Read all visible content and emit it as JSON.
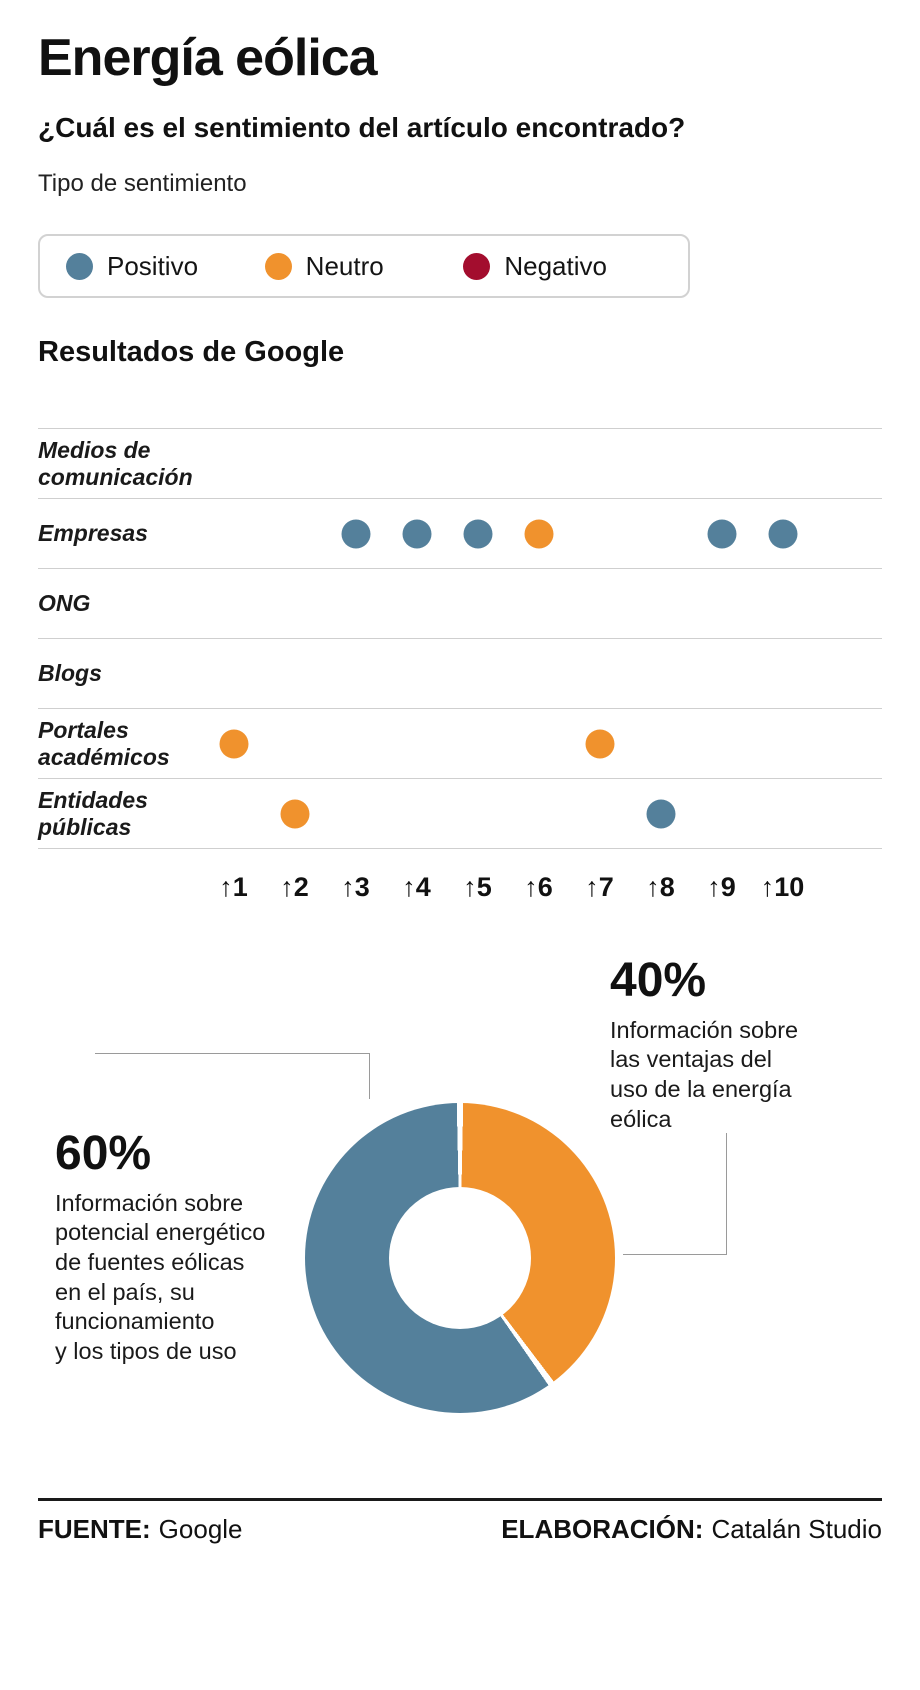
{
  "colors": {
    "positivo": "#54809b",
    "neutro": "#f0922d",
    "negativo": "#a30d2e"
  },
  "header": {
    "title": "Energía eólica",
    "subtitle": "¿Cuál es el sentimiento del artículo encontrado?",
    "sentiment_type_label": "Tipo de sentimiento"
  },
  "legend": {
    "items": [
      {
        "label": "Positivo",
        "color_key": "positivo"
      },
      {
        "label": "Neutro",
        "color_key": "neutro"
      },
      {
        "label": "Negativo",
        "color_key": "negativo"
      }
    ]
  },
  "section_title": "Resultados de Google",
  "chart_data": [
    {
      "type": "scatter",
      "title": "Resultados de Google",
      "x_axis": {
        "arrow": "↑",
        "ticks": [
          "1",
          "2",
          "3",
          "4",
          "5",
          "6",
          "7",
          "8",
          "9",
          "10"
        ]
      },
      "rows": [
        {
          "label": "Medios de\ncomunicación",
          "dots": []
        },
        {
          "label": "Empresas",
          "dots": [
            {
              "x": 3,
              "sentiment": "positivo"
            },
            {
              "x": 4,
              "sentiment": "positivo"
            },
            {
              "x": 5,
              "sentiment": "positivo"
            },
            {
              "x": 6,
              "sentiment": "neutro"
            },
            {
              "x": 9,
              "sentiment": "positivo"
            },
            {
              "x": 10,
              "sentiment": "positivo"
            }
          ]
        },
        {
          "label": "ONG",
          "dots": []
        },
        {
          "label": "Blogs",
          "dots": []
        },
        {
          "label": "Portales\nacadémicos",
          "dots": [
            {
              "x": 1,
              "sentiment": "neutro"
            },
            {
              "x": 7,
              "sentiment": "neutro"
            }
          ]
        },
        {
          "label": "Entidades\npúblicas",
          "dots": [
            {
              "x": 2,
              "sentiment": "neutro"
            },
            {
              "x": 8,
              "sentiment": "positivo"
            }
          ]
        }
      ]
    },
    {
      "type": "pie",
      "donut": true,
      "slices": [
        {
          "value": 40,
          "label": "40%",
          "color_key": "neutro",
          "description": "Información sobre\nlas ventajas del\nuso de la energía\neólica"
        },
        {
          "value": 60,
          "label": "60%",
          "color_key": "positivo",
          "description": "Información sobre\npotencial energético\nde fuentes eólicas\nen el país, su\nfuncionamiento\ny los tipos de uso"
        }
      ]
    }
  ],
  "footer": {
    "source_label": "FUENTE:",
    "source_value": "Google",
    "credit_label": "ELABORACIÓN:",
    "credit_value": "Catalán Studio"
  }
}
